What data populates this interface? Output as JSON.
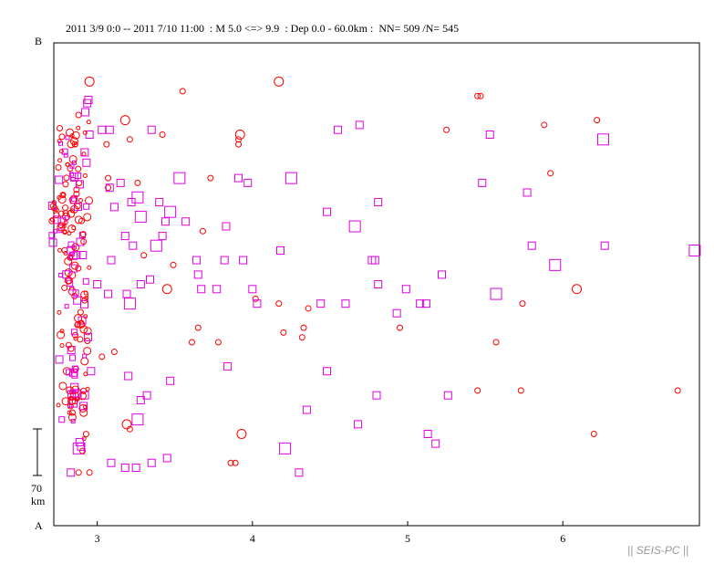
{
  "header": {
    "date_range": "2011 3/9 0:0 -- 2011 7/10 11:00",
    "magnitude": ": M 5.0 <=> 9.9",
    "depth": ": Dep 0.0 - 60.0km :",
    "counts": "NN= 509 /N= 545"
  },
  "profile_end_top": "B",
  "profile_end_bottom": "A",
  "scale_bar": {
    "value": "70",
    "unit": "km"
  },
  "watermark": "|| SEIS-PC ||",
  "colors": {
    "circle": "#ff0000",
    "square": "#e000e0",
    "frame": "#000000"
  },
  "chart_data": {
    "type": "scatter",
    "xlim": [
      2.72,
      6.88
    ],
    "x_ticks": [
      3,
      4,
      5,
      6
    ],
    "x_tick_labels": [
      "3",
      "4",
      "5",
      "6"
    ],
    "ylim": [
      0,
      100
    ],
    "grid": false,
    "series": [
      {
        "marker": "circle",
        "points": [
          [
            2.95,
            92,
            3
          ],
          [
            3.55,
            90,
            2
          ],
          [
            4.17,
            92,
            3
          ],
          [
            5.47,
            89,
            2
          ],
          [
            5.45,
            89,
            2
          ],
          [
            6.22,
            84,
            2
          ],
          [
            5.88,
            83,
            2
          ],
          [
            5.25,
            82,
            2
          ],
          [
            3.18,
            84,
            3
          ],
          [
            3.42,
            81,
            2
          ],
          [
            3.92,
            81,
            3
          ],
          [
            3.91,
            80,
            2
          ],
          [
            3.91,
            79,
            2
          ],
          [
            3.06,
            79,
            2
          ],
          [
            3.21,
            80,
            2
          ],
          [
            5.92,
            73,
            2
          ],
          [
            3.07,
            72,
            2
          ],
          [
            3.73,
            72,
            2
          ],
          [
            3.26,
            71,
            2
          ],
          [
            3.07,
            70,
            2
          ],
          [
            3.68,
            61,
            2
          ],
          [
            3.3,
            56,
            2
          ],
          [
            3.49,
            54,
            2
          ],
          [
            3.45,
            49,
            3
          ],
          [
            6.09,
            49,
            3
          ],
          [
            4.02,
            47,
            2
          ],
          [
            4.17,
            46,
            2
          ],
          [
            4.36,
            45,
            2
          ],
          [
            3.65,
            41,
            2
          ],
          [
            4.33,
            41,
            2
          ],
          [
            4.2,
            40,
            2
          ],
          [
            4.32,
            39,
            2
          ],
          [
            3.61,
            38,
            2
          ],
          [
            3.78,
            38,
            2
          ],
          [
            4.95,
            41,
            2
          ],
          [
            5.74,
            46,
            2
          ],
          [
            5.57,
            38,
            2
          ],
          [
            3.11,
            36,
            2
          ],
          [
            3.03,
            35,
            2
          ],
          [
            5.45,
            28,
            2
          ],
          [
            5.73,
            28,
            2
          ],
          [
            6.74,
            28,
            2
          ],
          [
            3.93,
            19,
            3
          ],
          [
            3.19,
            21,
            3
          ],
          [
            3.21,
            20,
            2
          ],
          [
            6.2,
            19,
            2
          ],
          [
            3.89,
            13,
            2
          ],
          [
            3.86,
            13,
            2
          ],
          [
            2.95,
            11,
            2
          ],
          [
            2.88,
            11,
            2
          ]
        ]
      },
      {
        "marker": "square",
        "points": [
          [
            2.95,
            81,
            2
          ],
          [
            3.03,
            82,
            2
          ],
          [
            3.08,
            82,
            2
          ],
          [
            3.35,
            82,
            2
          ],
          [
            4.69,
            83,
            2
          ],
          [
            4.55,
            82,
            2
          ],
          [
            5.53,
            81,
            2
          ],
          [
            6.26,
            80,
            3
          ],
          [
            3.08,
            70,
            2
          ],
          [
            3.15,
            71,
            2
          ],
          [
            3.53,
            72,
            3
          ],
          [
            3.91,
            72,
            2
          ],
          [
            3.97,
            71,
            2
          ],
          [
            4.25,
            72,
            3
          ],
          [
            5.48,
            71,
            2
          ],
          [
            5.77,
            69,
            2
          ],
          [
            3.26,
            68,
            3
          ],
          [
            3.4,
            67,
            2
          ],
          [
            3.22,
            67,
            2
          ],
          [
            3.47,
            65,
            3
          ],
          [
            3.11,
            66,
            2
          ],
          [
            3.28,
            64,
            3
          ],
          [
            3.44,
            63,
            2
          ],
          [
            3.57,
            63,
            2
          ],
          [
            3.83,
            62,
            2
          ],
          [
            4.48,
            65,
            2
          ],
          [
            4.81,
            67,
            2
          ],
          [
            4.66,
            62,
            3
          ],
          [
            3.18,
            60,
            2
          ],
          [
            3.42,
            60,
            2
          ],
          [
            3.23,
            58,
            2
          ],
          [
            3.38,
            58,
            3
          ],
          [
            4.18,
            57,
            2
          ],
          [
            5.8,
            58,
            2
          ],
          [
            6.27,
            58,
            2
          ],
          [
            6.85,
            57,
            3
          ],
          [
            3.09,
            55,
            2
          ],
          [
            3.64,
            55,
            2
          ],
          [
            3.82,
            55,
            2
          ],
          [
            3.94,
            55,
            2
          ],
          [
            4.77,
            55,
            2
          ],
          [
            4.79,
            55,
            2
          ],
          [
            5.95,
            54,
            3
          ],
          [
            3.34,
            51,
            2
          ],
          [
            3.65,
            52,
            2
          ],
          [
            5.22,
            52,
            2
          ],
          [
            3.0,
            50,
            2
          ],
          [
            3.28,
            50,
            2
          ],
          [
            3.19,
            48,
            2
          ],
          [
            3.67,
            49,
            2
          ],
          [
            3.77,
            49,
            2
          ],
          [
            4.0,
            49,
            2
          ],
          [
            4.81,
            50,
            2
          ],
          [
            4.99,
            49,
            2
          ],
          [
            5.57,
            48,
            3
          ],
          [
            3.07,
            48,
            2
          ],
          [
            3.21,
            46,
            3
          ],
          [
            4.03,
            46,
            2
          ],
          [
            4.44,
            46,
            2
          ],
          [
            4.6,
            46,
            2
          ],
          [
            5.08,
            46,
            2
          ],
          [
            5.12,
            46,
            2
          ],
          [
            4.93,
            44,
            2
          ],
          [
            3.84,
            33,
            2
          ],
          [
            4.48,
            32,
            2
          ],
          [
            3.2,
            31,
            2
          ],
          [
            2.96,
            32,
            2
          ],
          [
            3.47,
            30,
            2
          ],
          [
            3.32,
            27,
            2
          ],
          [
            3.28,
            26,
            2
          ],
          [
            4.8,
            27,
            2
          ],
          [
            5.26,
            27,
            2
          ],
          [
            4.35,
            24,
            2
          ],
          [
            2.92,
            27,
            2
          ],
          [
            4.68,
            21,
            2
          ],
          [
            5.13,
            19,
            2
          ],
          [
            5.18,
            17,
            2
          ],
          [
            3.26,
            22,
            3
          ],
          [
            4.21,
            16,
            3
          ],
          [
            2.88,
            16,
            3
          ],
          [
            3.45,
            14,
            2
          ],
          [
            3.35,
            13,
            2
          ],
          [
            3.25,
            12,
            2
          ],
          [
            3.18,
            12,
            2
          ],
          [
            3.09,
            13,
            2
          ],
          [
            2.83,
            11,
            2
          ],
          [
            4.3,
            11,
            2
          ]
        ]
      }
    ]
  }
}
